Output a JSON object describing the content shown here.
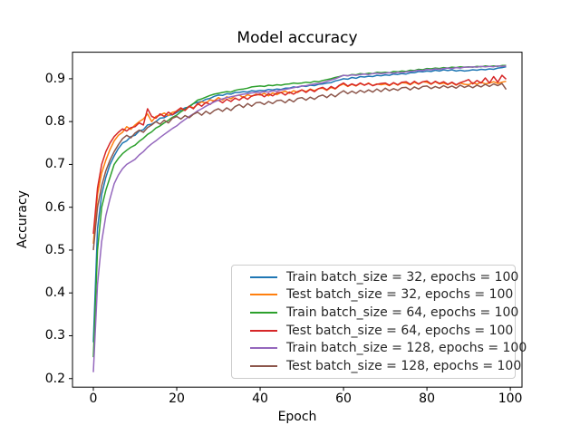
{
  "figure": {
    "background": "#ffffff"
  },
  "chart_data": {
    "type": "line",
    "title": "Model accuracy",
    "xlabel": "Epoch",
    "ylabel": "Accuracy",
    "xlim": [
      -5,
      102.8
    ],
    "ylim": [
      0.18,
      0.962
    ],
    "xticks": [
      0,
      20,
      40,
      60,
      80,
      100
    ],
    "yticks": [
      0.2,
      0.3,
      0.4,
      0.5,
      0.6,
      0.7,
      0.8,
      0.9
    ],
    "grid": false,
    "legend_position": "lower right",
    "x": [
      0,
      1,
      2,
      3,
      4,
      5,
      6,
      7,
      8,
      9,
      10,
      11,
      12,
      13,
      14,
      15,
      16,
      17,
      18,
      19,
      20,
      21,
      22,
      23,
      24,
      25,
      26,
      27,
      28,
      29,
      30,
      31,
      32,
      33,
      34,
      35,
      36,
      37,
      38,
      39,
      40,
      41,
      42,
      43,
      44,
      45,
      46,
      47,
      48,
      49,
      50,
      51,
      52,
      53,
      54,
      55,
      56,
      57,
      58,
      59,
      60,
      61,
      62,
      63,
      64,
      65,
      66,
      67,
      68,
      69,
      70,
      71,
      72,
      73,
      74,
      75,
      76,
      77,
      78,
      79,
      80,
      81,
      82,
      83,
      84,
      85,
      86,
      87,
      88,
      89,
      90,
      91,
      92,
      93,
      94,
      95,
      96,
      97,
      98,
      99
    ],
    "series": [
      {
        "name": "Train batch_size = 32, epochs = 100",
        "color": "#1f77b4",
        "values": [
          0.285,
          0.55,
          0.63,
          0.67,
          0.7,
          0.72,
          0.737,
          0.75,
          0.755,
          0.765,
          0.768,
          0.778,
          0.781,
          0.792,
          0.794,
          0.8,
          0.808,
          0.809,
          0.815,
          0.816,
          0.821,
          0.827,
          0.832,
          0.834,
          0.842,
          0.845,
          0.847,
          0.852,
          0.854,
          0.859,
          0.862,
          0.861,
          0.865,
          0.864,
          0.868,
          0.868,
          0.87,
          0.869,
          0.872,
          0.871,
          0.873,
          0.872,
          0.875,
          0.874,
          0.876,
          0.875,
          0.878,
          0.878,
          0.881,
          0.88,
          0.883,
          0.882,
          0.885,
          0.884,
          0.887,
          0.888,
          0.89,
          0.891,
          0.895,
          0.897,
          0.9,
          0.899,
          0.903,
          0.901,
          0.905,
          0.904,
          0.906,
          0.905,
          0.908,
          0.907,
          0.909,
          0.908,
          0.911,
          0.91,
          0.912,
          0.911,
          0.914,
          0.914,
          0.917,
          0.916,
          0.918,
          0.917,
          0.92,
          0.918,
          0.921,
          0.919,
          0.921,
          0.918,
          0.92,
          0.918,
          0.919,
          0.921,
          0.92,
          0.922,
          0.921,
          0.923,
          0.922,
          0.925,
          0.926,
          0.928
        ]
      },
      {
        "name": "Test batch_size = 32, epochs = 100",
        "color": "#ff7f0e",
        "values": [
          0.515,
          0.63,
          0.68,
          0.71,
          0.735,
          0.755,
          0.768,
          0.775,
          0.788,
          0.782,
          0.792,
          0.8,
          0.806,
          0.818,
          0.8,
          0.812,
          0.815,
          0.82,
          0.814,
          0.822,
          0.824,
          0.83,
          0.826,
          0.836,
          0.832,
          0.84,
          0.846,
          0.843,
          0.851,
          0.848,
          0.856,
          0.85,
          0.858,
          0.853,
          0.86,
          0.862,
          0.856,
          0.863,
          0.859,
          0.864,
          0.862,
          0.866,
          0.86,
          0.867,
          0.863,
          0.868,
          0.871,
          0.866,
          0.872,
          0.868,
          0.874,
          0.87,
          0.876,
          0.872,
          0.877,
          0.878,
          0.873,
          0.88,
          0.876,
          0.884,
          0.888,
          0.882,
          0.887,
          0.883,
          0.889,
          0.885,
          0.89,
          0.884,
          0.888,
          0.886,
          0.888,
          0.884,
          0.89,
          0.885,
          0.891,
          0.89,
          0.886,
          0.892,
          0.887,
          0.893,
          0.892,
          0.887,
          0.893,
          0.888,
          0.89,
          0.886,
          0.891,
          0.885,
          0.89,
          0.887,
          0.886,
          0.891,
          0.887,
          0.892,
          0.888,
          0.89,
          0.893,
          0.889,
          0.892,
          0.894
        ]
      },
      {
        "name": "Train batch_size = 64, epochs = 100",
        "color": "#2ca02c",
        "values": [
          0.25,
          0.5,
          0.6,
          0.64,
          0.67,
          0.7,
          0.714,
          0.725,
          0.733,
          0.74,
          0.745,
          0.754,
          0.761,
          0.77,
          0.776,
          0.785,
          0.79,
          0.797,
          0.803,
          0.81,
          0.815,
          0.823,
          0.829,
          0.836,
          0.842,
          0.85,
          0.853,
          0.857,
          0.861,
          0.864,
          0.866,
          0.868,
          0.87,
          0.869,
          0.873,
          0.875,
          0.876,
          0.878,
          0.881,
          0.882,
          0.883,
          0.882,
          0.885,
          0.884,
          0.886,
          0.885,
          0.887,
          0.888,
          0.89,
          0.889,
          0.89,
          0.892,
          0.891,
          0.894,
          0.893,
          0.896,
          0.898,
          0.9,
          0.903,
          0.905,
          0.908,
          0.907,
          0.91,
          0.909,
          0.912,
          0.911,
          0.913,
          0.912,
          0.915,
          0.914,
          0.915,
          0.914,
          0.917,
          0.916,
          0.918,
          0.917,
          0.92,
          0.919,
          0.922,
          0.921,
          0.924,
          0.923,
          0.925,
          0.924,
          0.926,
          0.925,
          0.927,
          0.926,
          0.928,
          0.927,
          0.928,
          0.927,
          0.929,
          0.928,
          0.93,
          0.929,
          0.93,
          0.929,
          0.931,
          0.931
        ]
      },
      {
        "name": "Test batch_size = 64, epochs = 100",
        "color": "#d62728",
        "values": [
          0.538,
          0.645,
          0.7,
          0.73,
          0.75,
          0.765,
          0.775,
          0.783,
          0.778,
          0.786,
          0.788,
          0.797,
          0.792,
          0.83,
          0.812,
          0.808,
          0.818,
          0.812,
          0.822,
          0.816,
          0.825,
          0.832,
          0.826,
          0.836,
          0.83,
          0.842,
          0.836,
          0.845,
          0.84,
          0.848,
          0.85,
          0.844,
          0.852,
          0.847,
          0.855,
          0.85,
          0.858,
          0.852,
          0.86,
          0.862,
          0.864,
          0.858,
          0.865,
          0.86,
          0.867,
          0.868,
          0.862,
          0.869,
          0.864,
          0.87,
          0.874,
          0.868,
          0.875,
          0.87,
          0.877,
          0.88,
          0.874,
          0.882,
          0.877,
          0.885,
          0.89,
          0.883,
          0.888,
          0.884,
          0.89,
          0.885,
          0.889,
          0.884,
          0.887,
          0.889,
          0.89,
          0.885,
          0.891,
          0.886,
          0.892,
          0.893,
          0.887,
          0.894,
          0.888,
          0.893,
          0.895,
          0.888,
          0.894,
          0.889,
          0.893,
          0.887,
          0.892,
          0.886,
          0.891,
          0.894,
          0.898,
          0.888,
          0.896,
          0.89,
          0.902,
          0.89,
          0.905,
          0.892,
          0.908,
          0.899
        ]
      },
      {
        "name": "Train batch_size = 128, epochs = 100",
        "color": "#9467bd",
        "values": [
          0.215,
          0.42,
          0.52,
          0.58,
          0.62,
          0.655,
          0.675,
          0.69,
          0.7,
          0.706,
          0.712,
          0.722,
          0.73,
          0.74,
          0.748,
          0.755,
          0.763,
          0.77,
          0.777,
          0.784,
          0.79,
          0.798,
          0.805,
          0.812,
          0.818,
          0.825,
          0.83,
          0.836,
          0.841,
          0.846,
          0.85,
          0.853,
          0.856,
          0.858,
          0.86,
          0.862,
          0.864,
          0.865,
          0.867,
          0.868,
          0.868,
          0.87,
          0.869,
          0.872,
          0.871,
          0.874,
          0.875,
          0.877,
          0.879,
          0.881,
          0.883,
          0.884,
          0.886,
          0.888,
          0.889,
          0.891,
          0.894,
          0.897,
          0.9,
          0.904,
          0.908,
          0.907,
          0.909,
          0.908,
          0.91,
          0.911,
          0.91,
          0.912,
          0.913,
          0.912,
          0.913,
          0.914,
          0.913,
          0.915,
          0.914,
          0.916,
          0.917,
          0.918,
          0.92,
          0.919,
          0.922,
          0.921,
          0.923,
          0.922,
          0.924,
          0.925,
          0.924,
          0.926,
          0.925,
          0.927,
          0.927,
          0.928,
          0.927,
          0.929,
          0.928,
          0.929,
          0.928,
          0.93,
          0.929,
          0.93
        ]
      },
      {
        "name": "Test batch_size = 128, epochs = 100",
        "color": "#8c564b",
        "values": [
          0.5,
          0.6,
          0.65,
          0.685,
          0.71,
          0.73,
          0.746,
          0.76,
          0.768,
          0.762,
          0.773,
          0.78,
          0.775,
          0.786,
          0.792,
          0.8,
          0.794,
          0.803,
          0.797,
          0.808,
          0.812,
          0.806,
          0.814,
          0.809,
          0.817,
          0.822,
          0.815,
          0.824,
          0.818,
          0.826,
          0.83,
          0.824,
          0.832,
          0.826,
          0.835,
          0.84,
          0.833,
          0.842,
          0.836,
          0.844,
          0.845,
          0.84,
          0.847,
          0.842,
          0.849,
          0.85,
          0.844,
          0.852,
          0.846,
          0.854,
          0.856,
          0.85,
          0.857,
          0.852,
          0.859,
          0.862,
          0.856,
          0.864,
          0.858,
          0.866,
          0.872,
          0.865,
          0.871,
          0.866,
          0.873,
          0.868,
          0.874,
          0.869,
          0.876,
          0.87,
          0.878,
          0.872,
          0.877,
          0.873,
          0.879,
          0.88,
          0.874,
          0.881,
          0.876,
          0.882,
          0.883,
          0.877,
          0.882,
          0.878,
          0.884,
          0.879,
          0.883,
          0.878,
          0.885,
          0.88,
          0.884,
          0.879,
          0.885,
          0.881,
          0.887,
          0.882,
          0.888,
          0.884,
          0.889,
          0.875
        ]
      }
    ]
  }
}
